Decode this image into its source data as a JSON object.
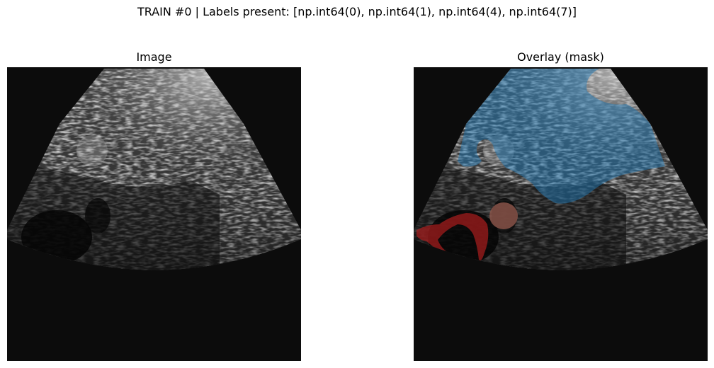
{
  "figure": {
    "suptitle": "TRAIN #0 | Labels present: [np.int64(0), np.int64(1), np.int64(4), np.int64(7)]"
  },
  "panels": [
    {
      "title": "Image"
    },
    {
      "title": "Overlay (mask)"
    }
  ],
  "colors": {
    "background": "#0c0c0c",
    "mask_label_1": "#1f77b4",
    "mask_label_4": "#8c564b",
    "mask_label_7": "#d62728"
  }
}
